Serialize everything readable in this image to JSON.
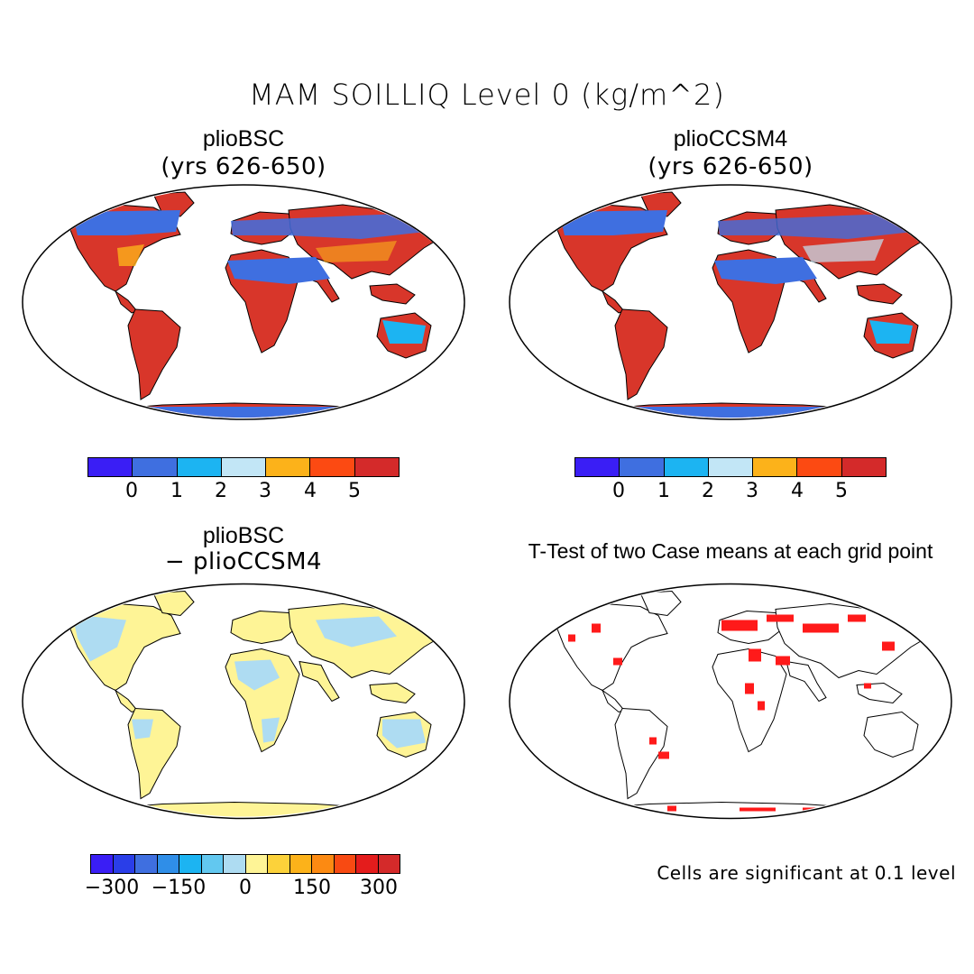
{
  "title": "MAM SOILLIQ Level 0 (kg/m^2)",
  "panels": {
    "top_left": {
      "title": "plioBSC",
      "subtitle": "(yrs 626-650)"
    },
    "top_right": {
      "title": "plioCCSM4",
      "subtitle": "(yrs 626-650)"
    },
    "bottom_left": {
      "title": "plioBSC",
      "subtitle": "− plioCCSM4"
    },
    "bottom_right": {
      "title": "T-Test of two Case means at each grid point"
    }
  },
  "colorbars": {
    "abs": {
      "colors": [
        "#3a1ef5",
        "#3f6fe0",
        "#1cb4f2",
        "#c2e6f6",
        "#fcb21a",
        "#fc4a12",
        "#d42a2a"
      ],
      "labels": [
        "0",
        "1",
        "2",
        "3",
        "4",
        "5"
      ]
    },
    "diff": {
      "colors": [
        "#3a1ef5",
        "#2a3ee8",
        "#3f6fe0",
        "#2f8ee8",
        "#1cb4f2",
        "#62c8f0",
        "#aedcf2",
        "#fef496",
        "#fcd23a",
        "#fcb21a",
        "#fc8a12",
        "#f84a12",
        "#e41c1c",
        "#d42a2a"
      ],
      "labels": [
        "−300",
        "−150",
        "0",
        "150",
        "300"
      ]
    }
  },
  "note": "Cells are significant at 0.1 level"
}
